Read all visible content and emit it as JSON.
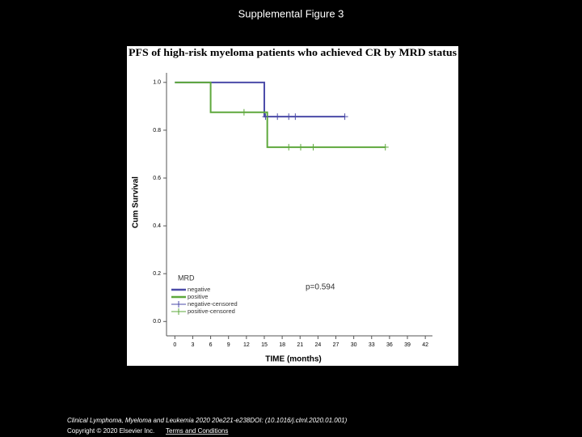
{
  "slide_title": "Supplemental Figure 3",
  "footer": {
    "citation": "Clinical Lymphoma, Myeloma and Leukemia 2020 20e221-e238DOI: (10.1016/j.clml.2020.01.001)",
    "copyright": "Copyright © 2020 Elsevier Inc.",
    "link": "Terms and Conditions"
  },
  "chart_data": {
    "type": "step",
    "title": "PFS of high-risk myeloma patients who achieved CR by MRD status",
    "x_label": "TIME (months)",
    "y_label": "Cum Survival",
    "legend_title": "MRD",
    "legend_position": "lower left",
    "annotation": "p=0.594",
    "xlim": [
      -1.4,
      43.2
    ],
    "ylim": [
      -0.06,
      1.04
    ],
    "xticks": [
      0,
      3,
      6,
      9,
      12,
      15,
      18,
      21,
      24,
      27,
      30,
      33,
      36,
      39,
      42
    ],
    "yticks": [
      {
        "value": 0,
        "label": "0.0"
      },
      {
        "value": 0.2,
        "label": "0.2"
      },
      {
        "value": 0.4,
        "label": "0.4"
      },
      {
        "value": 0.6,
        "label": "0.6"
      },
      {
        "value": 0.8,
        "label": "0.8"
      },
      {
        "value": 1,
        "label": "1.0"
      }
    ],
    "series": [
      {
        "name": "negative",
        "kind": "line",
        "color": "#4b4ba8",
        "x": [
          0,
          15,
          15,
          28.5
        ],
        "values": [
          1,
          1,
          0.857,
          0.857
        ]
      },
      {
        "name": "positive",
        "kind": "line",
        "color": "#5ea83c",
        "x": [
          0,
          6,
          6,
          15.5,
          15.5,
          35.3
        ],
        "values": [
          1,
          1,
          0.875,
          0.875,
          0.729,
          0.729
        ]
      },
      {
        "name": "negative-censored",
        "kind": "censored",
        "color": "#4b4ba8",
        "x": [
          15.2,
          17.2,
          19.1,
          20.2,
          28.5
        ],
        "values": [
          0.857,
          0.857,
          0.857,
          0.857,
          0.857
        ]
      },
      {
        "name": "positive-censored",
        "kind": "censored",
        "color": "#5ea83c",
        "x": [
          11.6,
          19.1,
          21.1,
          23.2,
          35.3
        ],
        "values": [
          0.875,
          0.729,
          0.729,
          0.729,
          0.729
        ]
      }
    ]
  }
}
